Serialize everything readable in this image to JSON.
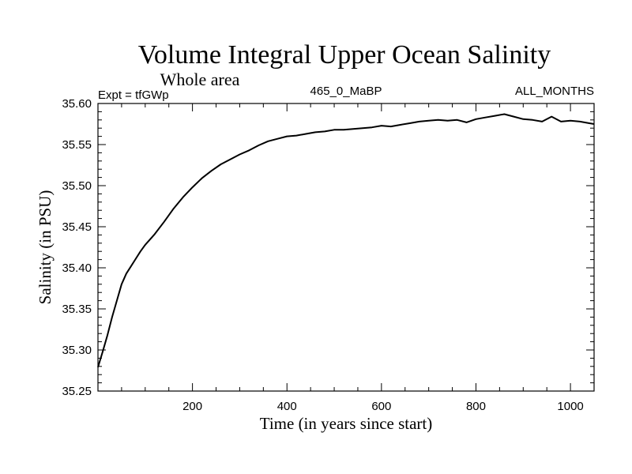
{
  "chart_data": {
    "type": "line",
    "title": "Volume Integral Upper Ocean Salinity",
    "subtitle": "Whole area",
    "experiment": "Expt = tfGWp",
    "run_label": "465_0_MaBP",
    "months_label": "ALL_MONTHS",
    "xlabel": "Time (in years since start)",
    "ylabel": "Salinity (in PSU)",
    "xlim": [
      0,
      1050
    ],
    "ylim": [
      35.25,
      35.6
    ],
    "xticks": [
      200,
      400,
      600,
      800,
      1000
    ],
    "yticks": [
      "35.25",
      "35.30",
      "35.35",
      "35.40",
      "35.45",
      "35.50",
      "35.55",
      "35.60"
    ],
    "grid": false,
    "series": [
      {
        "name": "Salinity",
        "color": "#000000",
        "x": [
          0,
          10,
          20,
          30,
          40,
          50,
          60,
          70,
          80,
          90,
          100,
          120,
          140,
          160,
          180,
          200,
          220,
          240,
          260,
          280,
          300,
          320,
          340,
          360,
          380,
          400,
          420,
          440,
          460,
          480,
          500,
          520,
          540,
          560,
          580,
          600,
          620,
          640,
          660,
          680,
          700,
          720,
          740,
          760,
          780,
          800,
          820,
          840,
          860,
          880,
          900,
          920,
          940,
          960,
          980,
          1000,
          1020,
          1040,
          1050
        ],
        "y": [
          35.279,
          35.298,
          35.318,
          35.34,
          35.36,
          35.38,
          35.393,
          35.402,
          35.411,
          35.42,
          35.428,
          35.441,
          35.456,
          35.472,
          35.486,
          35.498,
          35.509,
          35.518,
          35.526,
          35.532,
          35.538,
          35.543,
          35.549,
          35.554,
          35.557,
          35.56,
          35.561,
          35.563,
          35.565,
          35.566,
          35.568,
          35.568,
          35.569,
          35.57,
          35.571,
          35.573,
          35.572,
          35.574,
          35.576,
          35.578,
          35.579,
          35.58,
          35.579,
          35.58,
          35.577,
          35.581,
          35.583,
          35.585,
          35.587,
          35.584,
          35.581,
          35.58,
          35.578,
          35.584,
          35.578,
          35.579,
          35.578,
          35.576,
          35.575
        ]
      }
    ]
  }
}
